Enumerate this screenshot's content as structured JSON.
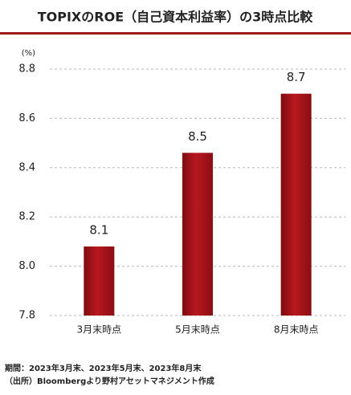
{
  "chart_data": {
    "type": "bar",
    "title": "TOPIXのROE（自己資本利益率）の3時点比較",
    "y_label": "(%)",
    "categories": [
      "3月末時点",
      "5月末時点",
      "8月末時点"
    ],
    "values": [
      8.08,
      8.46,
      8.7
    ],
    "value_labels": [
      "8.1",
      "8.5",
      "8.7"
    ],
    "color": "#a8141b",
    "ylim": [
      7.8,
      8.8
    ],
    "yticks": [
      7.8,
      {
        "value": 8,
        "label": "8.0"
      },
      8.2,
      8.4,
      8.6,
      8.8
    ],
    "grid": true,
    "notes": [
      "期間：2023年3月末、2023年5月末、2023年8月末",
      "（出所）Bloombergより野村アセットマネジメント作成"
    ]
  }
}
